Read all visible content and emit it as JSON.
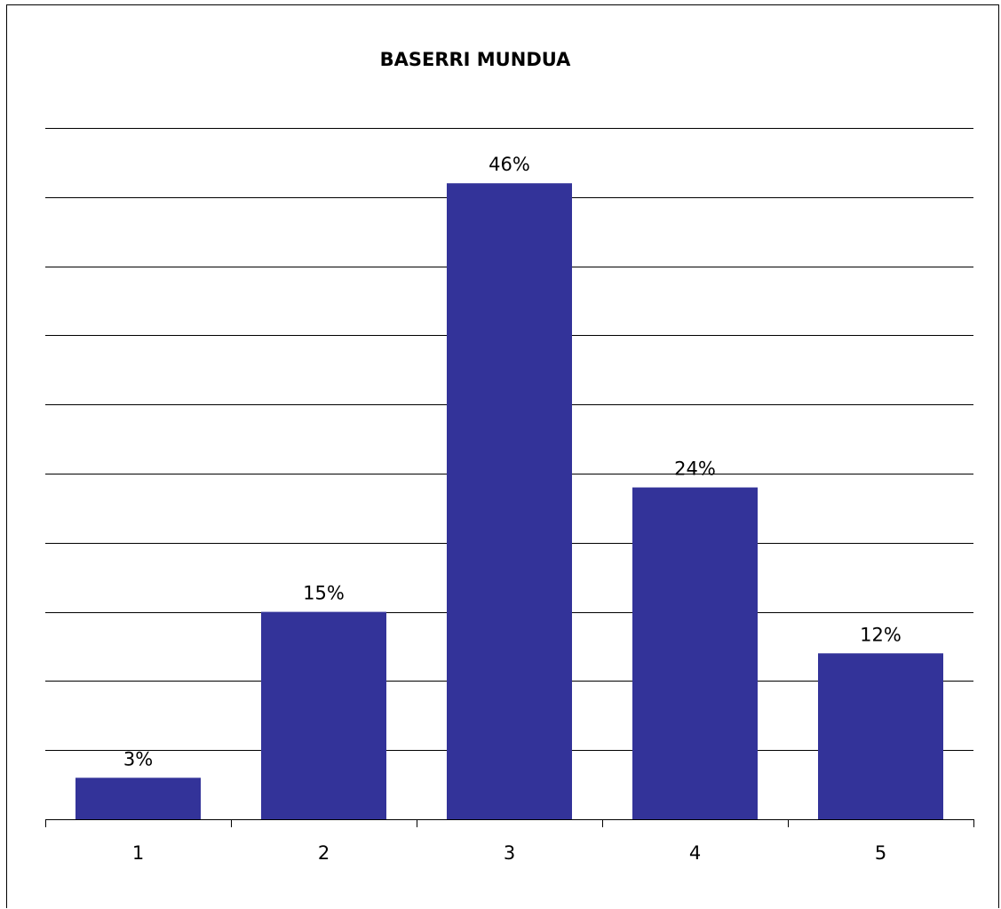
{
  "chart_data": {
    "type": "bar",
    "title": "BASERRI MUNDUA",
    "xlabel": "",
    "ylabel": "",
    "categories": [
      "1",
      "2",
      "3",
      "4",
      "5"
    ],
    "values": [
      3,
      15,
      46,
      24,
      12
    ],
    "data_labels": [
      "3%",
      "15%",
      "46%",
      "24%",
      "12%"
    ],
    "ylim": [
      0,
      50
    ],
    "grid": true,
    "legend": "none",
    "colors": {
      "bar": "#333399",
      "grid": "#000000",
      "axis": "#000000"
    }
  }
}
